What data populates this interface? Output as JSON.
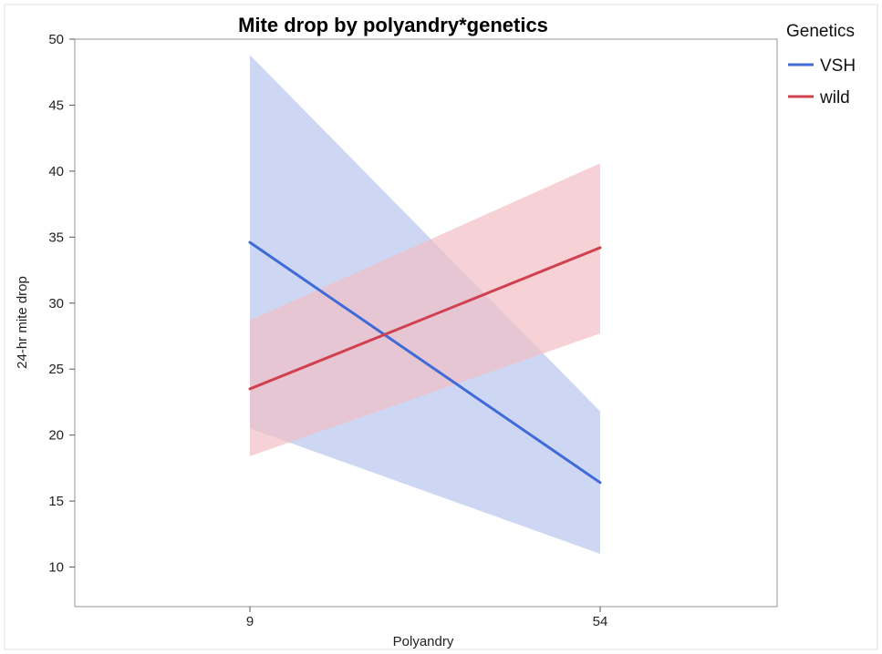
{
  "chart_data": {
    "type": "line",
    "title": "Mite drop by polyandry*genetics",
    "xlabel": "Polyandry",
    "ylabel": "24-hr mite drop",
    "categories": [
      "9",
      "54"
    ],
    "ylim": [
      7,
      50
    ],
    "yticks": [
      10,
      15,
      20,
      25,
      30,
      35,
      40,
      45,
      50
    ],
    "grid": false,
    "legend": {
      "title": "Genetics",
      "placement": "right"
    },
    "series": [
      {
        "name": "VSH",
        "color": "#3f6ad8",
        "band_color": "#b8c6ef",
        "values": [
          34.6,
          16.4
        ],
        "lower": [
          20.5,
          11.0
        ],
        "upper": [
          48.8,
          21.8
        ]
      },
      {
        "name": "wild",
        "color": "#d0404f",
        "band_color": "#f2bfc6",
        "values": [
          23.5,
          34.2
        ],
        "lower": [
          18.4,
          27.7
        ],
        "upper": [
          28.7,
          40.6
        ]
      }
    ]
  }
}
